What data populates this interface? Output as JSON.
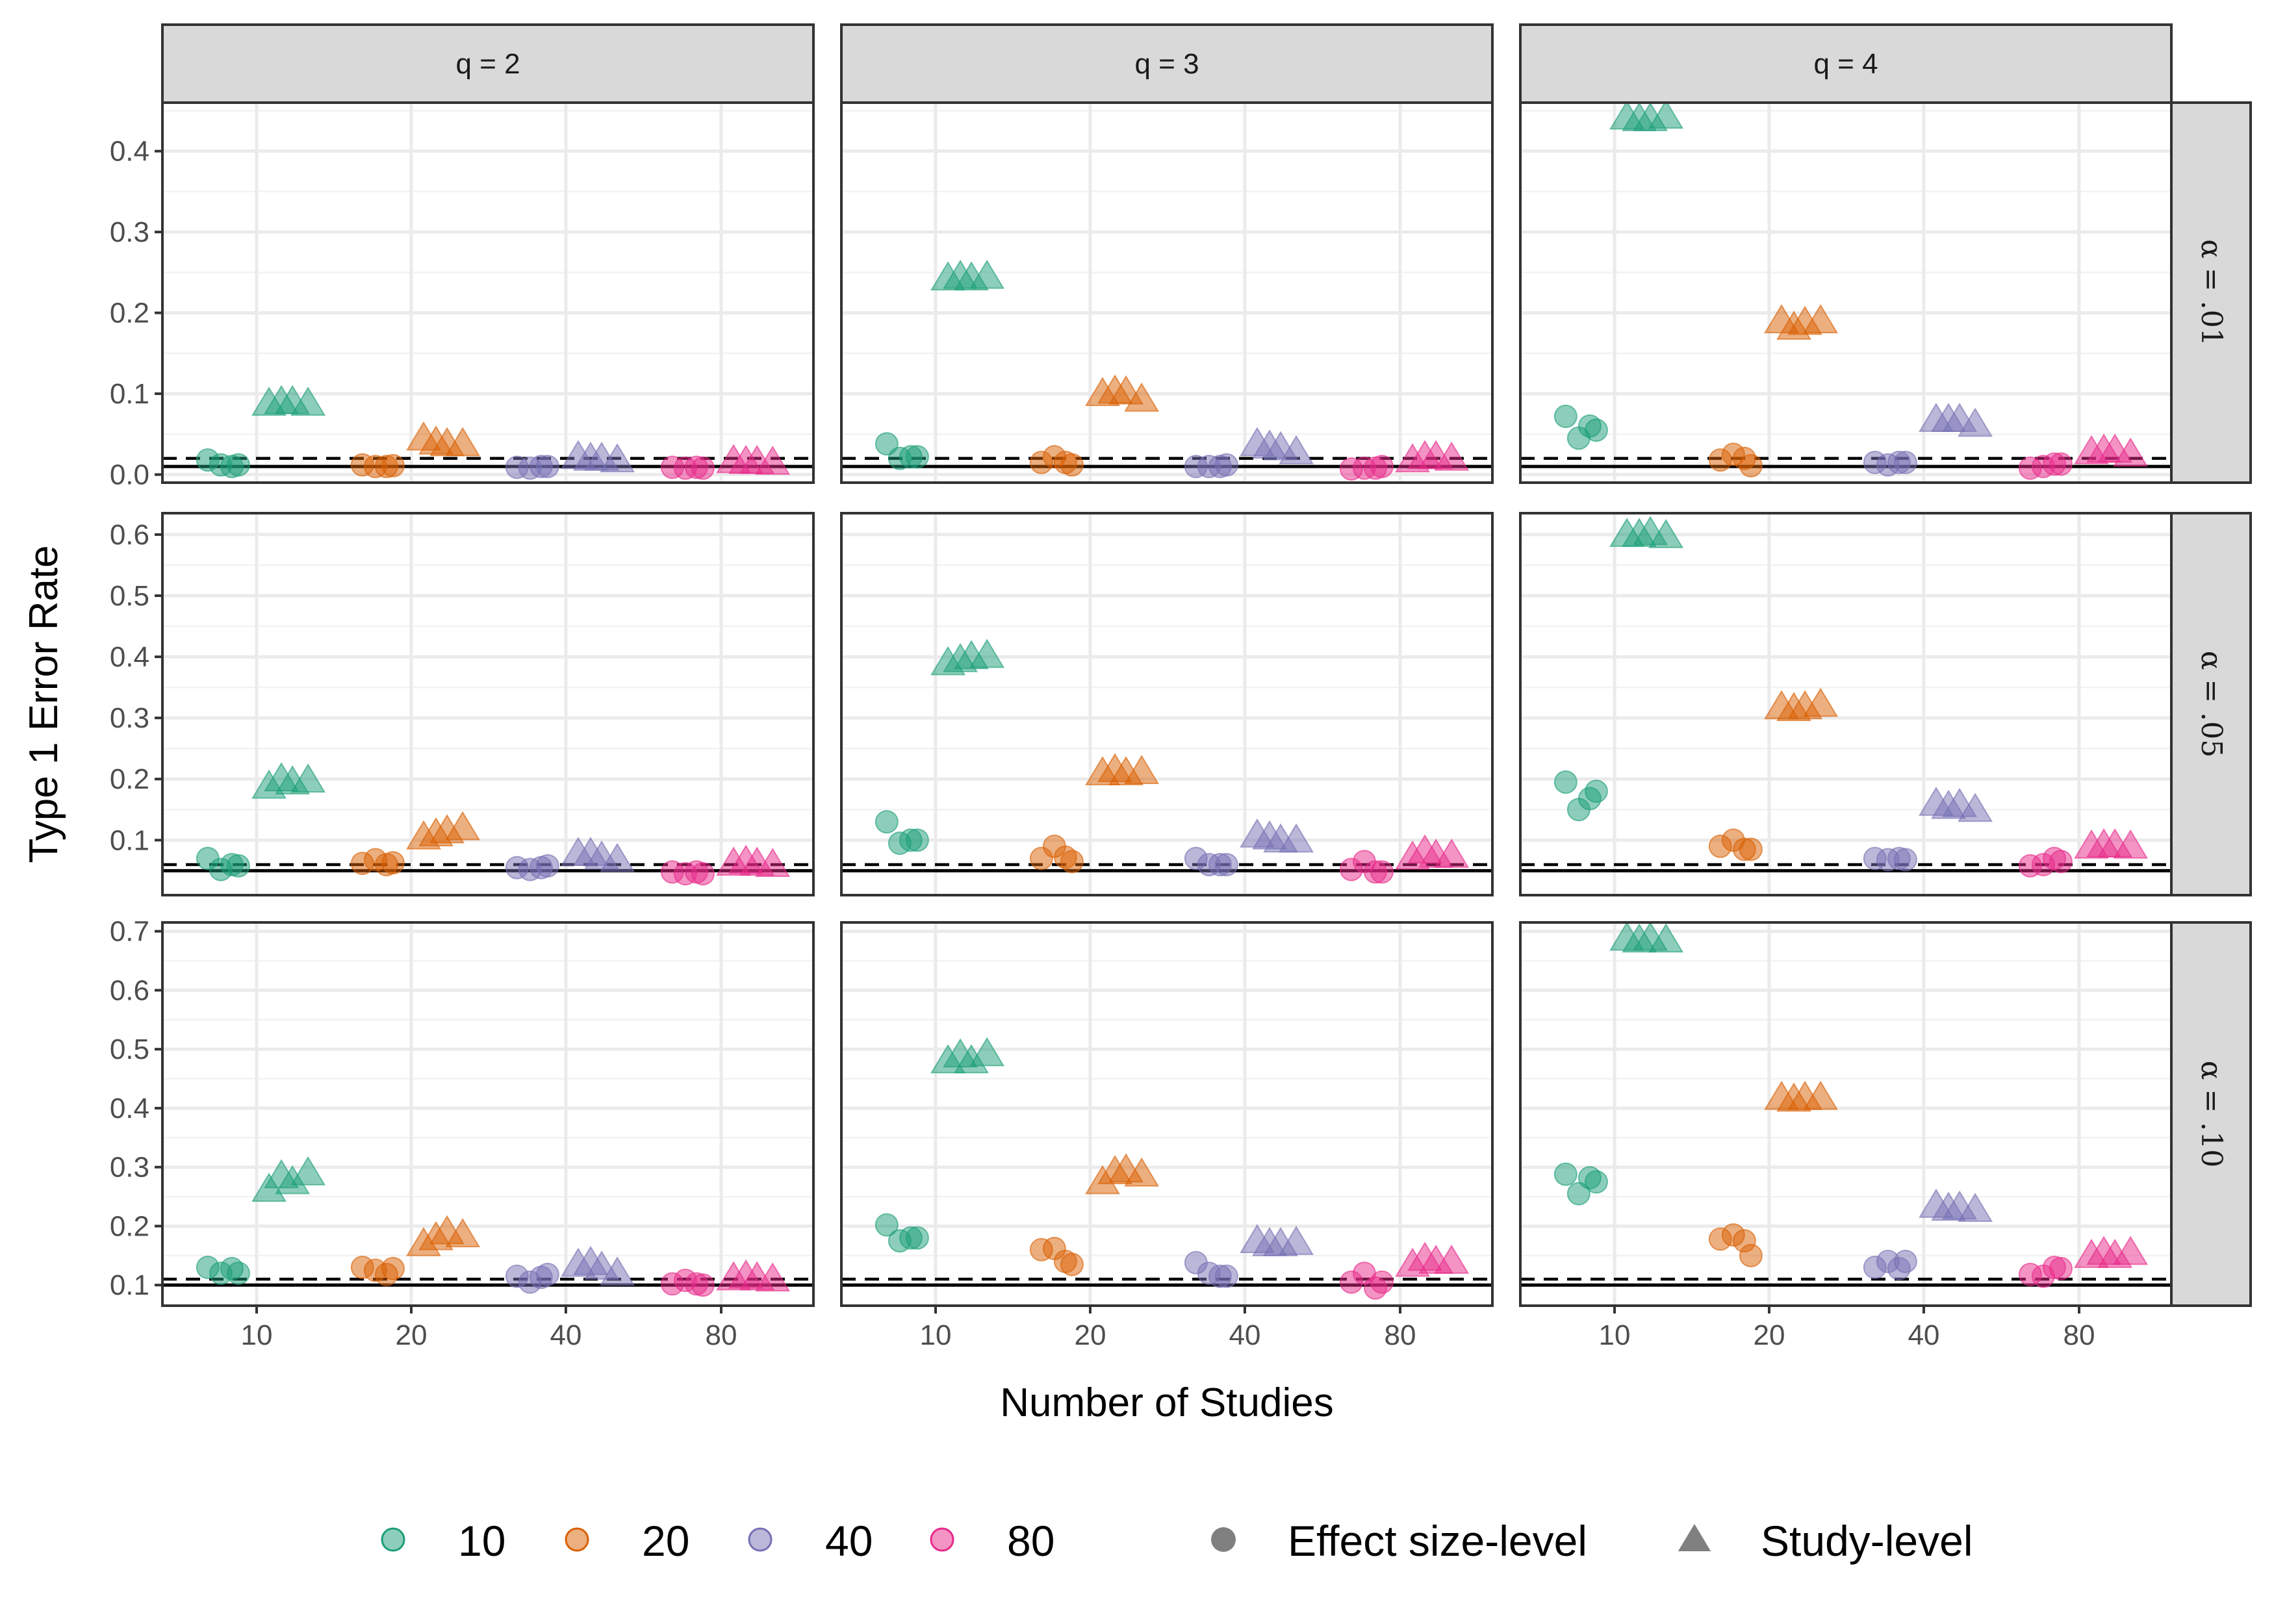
{
  "chart_data": {
    "type": "scatter",
    "facet_cols": [
      "q = 2",
      "q = 3",
      "q = 4"
    ],
    "facet_rows": [
      "α = .01",
      "α = .05",
      "α = .10"
    ],
    "alpha_values": [
      0.01,
      0.05,
      0.1
    ],
    "xlabel": "Number of Studies",
    "ylabel": "Type 1 Error Rate",
    "x_categories": [
      "10",
      "20",
      "40",
      "80"
    ],
    "row_axes": [
      {
        "ylim": [
          -0.01,
          0.46
        ],
        "ticks": [
          "0.0",
          "0.1",
          "0.2",
          "0.3",
          "0.4"
        ],
        "tick_values": [
          0.0,
          0.1,
          0.2,
          0.3,
          0.4
        ]
      },
      {
        "ylim": [
          0.01,
          0.635
        ],
        "ticks": [
          "0.1",
          "0.2",
          "0.3",
          "0.4",
          "0.5",
          "0.6"
        ],
        "tick_values": [
          0.1,
          0.2,
          0.3,
          0.4,
          0.5,
          0.6
        ]
      },
      {
        "ylim": [
          0.065,
          0.715
        ],
        "ticks": [
          "0.1",
          "0.2",
          "0.3",
          "0.4",
          "0.5",
          "0.6",
          "0.7"
        ],
        "tick_values": [
          0.1,
          0.2,
          0.3,
          0.4,
          0.5,
          0.6,
          0.7
        ]
      }
    ],
    "reference_lines": {
      "solid": "nominal α",
      "dashed_offset": 0.01
    },
    "legend": {
      "position": "bottom",
      "color_items": [
        {
          "label": "10",
          "color": "#1B9E77"
        },
        {
          "label": "20",
          "color": "#D95F02"
        },
        {
          "label": "40",
          "color": "#7570B3"
        },
        {
          "label": "80",
          "color": "#E7298A"
        }
      ],
      "shape_items": [
        {
          "label": "Effect size-level",
          "shape": "circle"
        },
        {
          "label": "Study-level",
          "shape": "triangle"
        }
      ]
    },
    "grid": true,
    "panels": [
      {
        "row": 0,
        "col": 0,
        "circle": [
          [
            0.018,
            0.012,
            0.01,
            0.012
          ],
          [
            0.012,
            0.01,
            0.01,
            0.011
          ],
          [
            0.009,
            0.008,
            0.01,
            0.01
          ],
          [
            0.009,
            0.008,
            0.009,
            0.008
          ]
        ],
        "triangle": [
          [
            0.088,
            0.09,
            0.09,
            0.088
          ],
          [
            0.045,
            0.04,
            0.038,
            0.038
          ],
          [
            0.022,
            0.02,
            0.02,
            0.018
          ],
          [
            0.017,
            0.016,
            0.016,
            0.015
          ]
        ]
      },
      {
        "row": 0,
        "col": 1,
        "circle": [
          [
            0.038,
            0.02,
            0.022,
            0.022
          ],
          [
            0.015,
            0.022,
            0.015,
            0.012
          ],
          [
            0.01,
            0.01,
            0.01,
            0.012
          ],
          [
            0.007,
            0.008,
            0.008,
            0.01
          ]
        ],
        "triangle": [
          [
            0.243,
            0.245,
            0.243,
            0.245
          ],
          [
            0.1,
            0.103,
            0.102,
            0.093
          ],
          [
            0.038,
            0.035,
            0.033,
            0.028
          ],
          [
            0.018,
            0.022,
            0.022,
            0.02
          ]
        ]
      },
      {
        "row": 0,
        "col": 2,
        "circle": [
          [
            0.072,
            0.045,
            0.06,
            0.055
          ],
          [
            0.018,
            0.025,
            0.02,
            0.011
          ],
          [
            0.015,
            0.012,
            0.015,
            0.015
          ],
          [
            0.008,
            0.01,
            0.013,
            0.013
          ]
        ],
        "triangle": [
          [
            0.442,
            0.44,
            0.44,
            0.443
          ],
          [
            0.19,
            0.182,
            0.188,
            0.19
          ],
          [
            0.068,
            0.068,
            0.068,
            0.062
          ],
          [
            0.028,
            0.03,
            0.03,
            0.025
          ]
        ]
      },
      {
        "row": 1,
        "col": 0,
        "circle": [
          [
            0.07,
            0.052,
            0.06,
            0.058
          ],
          [
            0.062,
            0.068,
            0.06,
            0.063
          ],
          [
            0.055,
            0.052,
            0.055,
            0.058
          ],
          [
            0.048,
            0.045,
            0.048,
            0.045
          ]
        ],
        "triangle": [
          [
            0.188,
            0.2,
            0.195,
            0.198
          ],
          [
            0.105,
            0.11,
            0.115,
            0.12
          ],
          [
            0.078,
            0.078,
            0.072,
            0.068
          ],
          [
            0.062,
            0.065,
            0.062,
            0.06
          ]
        ]
      },
      {
        "row": 1,
        "col": 1,
        "circle": [
          [
            0.13,
            0.095,
            0.1,
            0.1
          ],
          [
            0.07,
            0.09,
            0.072,
            0.065
          ],
          [
            0.07,
            0.06,
            0.06,
            0.06
          ],
          [
            0.052,
            0.065,
            0.048,
            0.048
          ]
        ],
        "triangle": [
          [
            0.39,
            0.395,
            0.4,
            0.402
          ],
          [
            0.21,
            0.215,
            0.21,
            0.212
          ],
          [
            0.108,
            0.105,
            0.1,
            0.1
          ],
          [
            0.072,
            0.082,
            0.075,
            0.075
          ]
        ]
      },
      {
        "row": 1,
        "col": 2,
        "circle": [
          [
            0.195,
            0.15,
            0.168,
            0.18
          ],
          [
            0.09,
            0.1,
            0.085,
            0.085
          ],
          [
            0.07,
            0.068,
            0.07,
            0.068
          ],
          [
            0.058,
            0.06,
            0.07,
            0.065
          ]
        ],
        "triangle": [
          [
            0.6,
            0.6,
            0.603,
            0.598
          ],
          [
            0.318,
            0.315,
            0.318,
            0.322
          ],
          [
            0.16,
            0.155,
            0.158,
            0.15
          ],
          [
            0.09,
            0.092,
            0.092,
            0.09
          ]
        ]
      },
      {
        "row": 2,
        "col": 0,
        "circle": [
          [
            0.13,
            0.12,
            0.128,
            0.12
          ],
          [
            0.13,
            0.125,
            0.118,
            0.128
          ],
          [
            0.115,
            0.105,
            0.113,
            0.118
          ],
          [
            0.102,
            0.108,
            0.102,
            0.1
          ]
        ],
        "triangle": [
          [
            0.262,
            0.285,
            0.275,
            0.29
          ],
          [
            0.17,
            0.18,
            0.19,
            0.185
          ],
          [
            0.135,
            0.138,
            0.13,
            0.12
          ],
          [
            0.112,
            0.115,
            0.112,
            0.11
          ]
        ]
      },
      {
        "row": 2,
        "col": 1,
        "circle": [
          [
            0.202,
            0.175,
            0.18,
            0.18
          ],
          [
            0.16,
            0.162,
            0.14,
            0.135
          ],
          [
            0.138,
            0.12,
            0.115,
            0.115
          ],
          [
            0.105,
            0.12,
            0.095,
            0.105
          ]
        ],
        "triangle": [
          [
            0.48,
            0.49,
            0.48,
            0.492
          ],
          [
            0.275,
            0.292,
            0.295,
            0.288
          ],
          [
            0.175,
            0.17,
            0.17,
            0.172
          ],
          [
            0.135,
            0.145,
            0.14,
            0.14
          ]
        ]
      },
      {
        "row": 2,
        "col": 2,
        "circle": [
          [
            0.288,
            0.255,
            0.282,
            0.275
          ],
          [
            0.178,
            0.185,
            0.175,
            0.15
          ],
          [
            0.13,
            0.14,
            0.128,
            0.14
          ],
          [
            0.118,
            0.115,
            0.13,
            0.128
          ]
        ],
        "triangle": [
          [
            0.688,
            0.685,
            0.688,
            0.685
          ],
          [
            0.418,
            0.415,
            0.418,
            0.418
          ],
          [
            0.235,
            0.23,
            0.232,
            0.228
          ],
          [
            0.15,
            0.155,
            0.15,
            0.155
          ]
        ]
      }
    ]
  }
}
